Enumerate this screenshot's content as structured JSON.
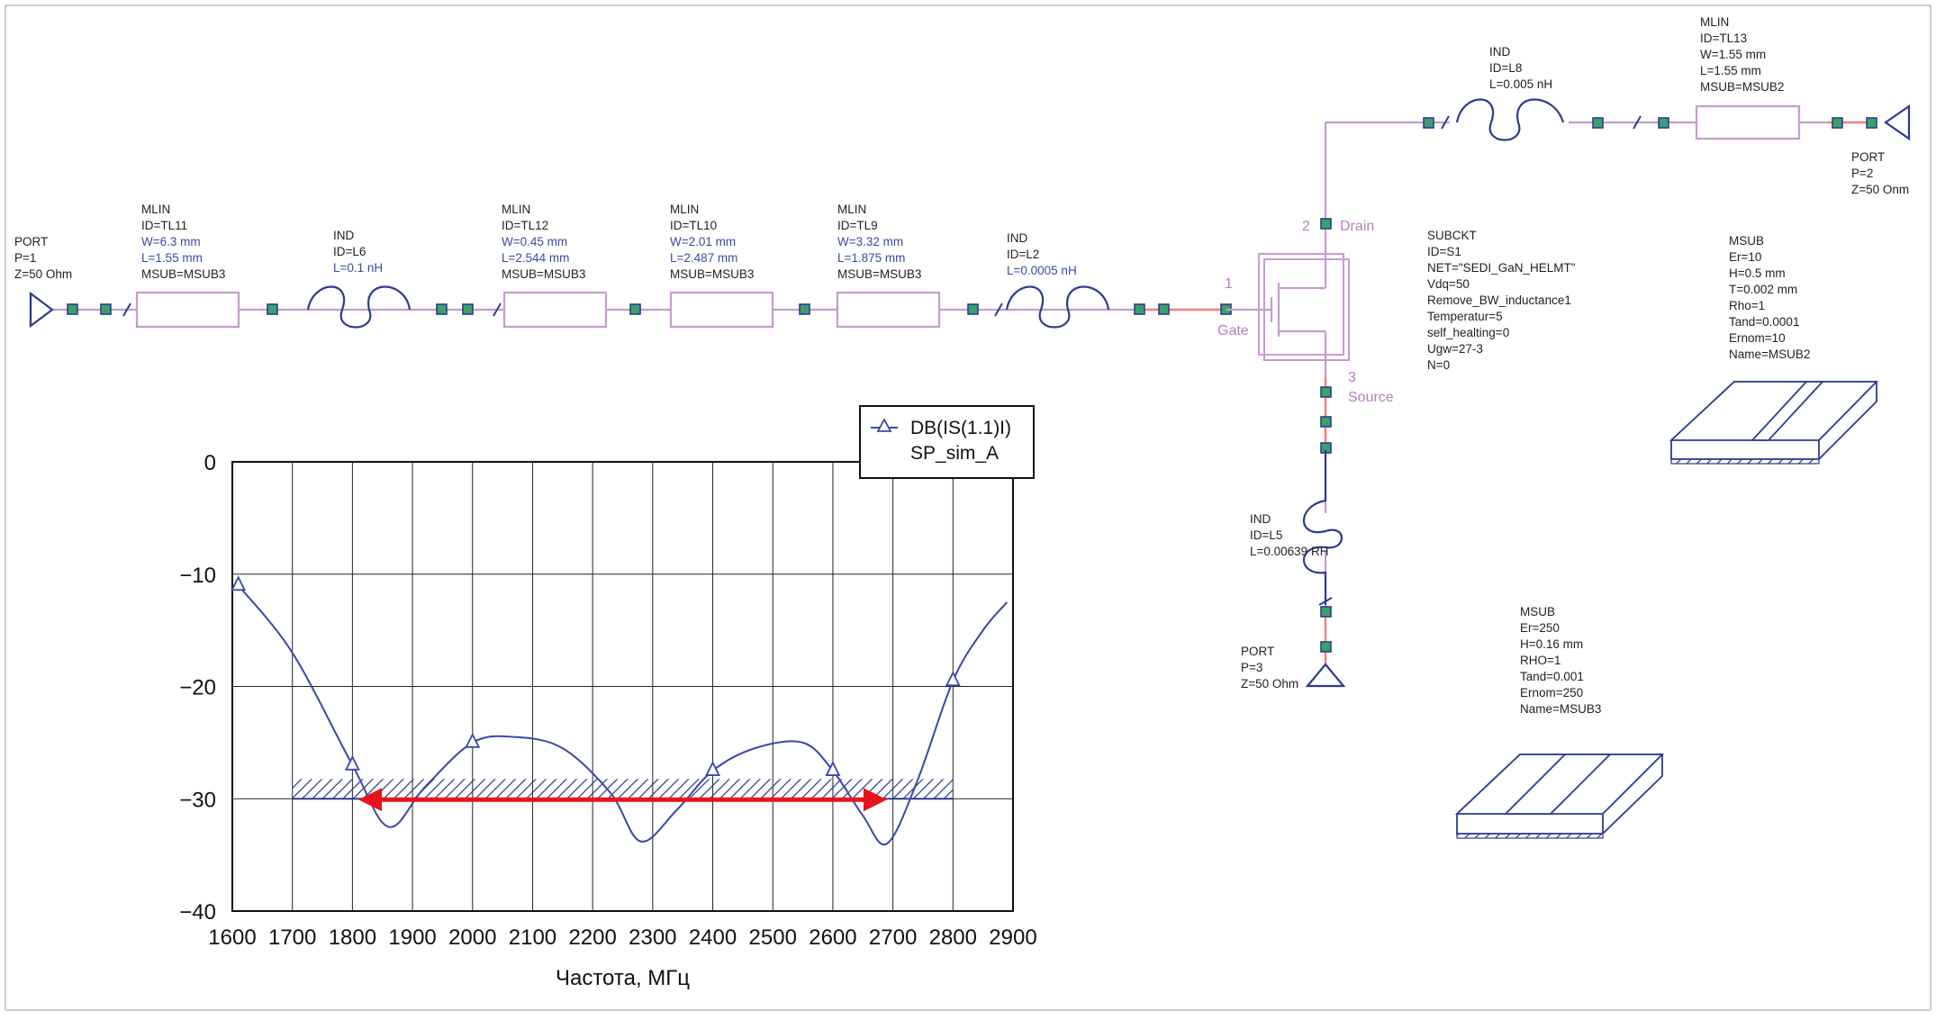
{
  "schematic": {
    "port1": [
      "PORT",
      "P=1",
      "Z=50 Ohm"
    ],
    "tl11": {
      "lines": [
        "MLIN",
        "ID=TL11"
      ],
      "params": [
        "W=6.3 mm",
        "L=1.55 mm"
      ],
      "sub": "MSUB=MSUB3"
    },
    "l6": {
      "lines": [
        "IND",
        "ID=L6"
      ],
      "params": [
        "L=0.1 nH"
      ]
    },
    "tl12": {
      "lines": [
        "MLIN",
        "ID=TL12"
      ],
      "params": [
        "W=0.45 mm",
        "L=2.544 mm"
      ],
      "sub": "MSUB=MSUB3"
    },
    "tl10": {
      "lines": [
        "MLIN",
        "ID=TL10"
      ],
      "params": [
        "W=2.01 mm",
        "L=2.487 mm"
      ],
      "sub": "MSUB=MSUB3"
    },
    "tl9": {
      "lines": [
        "MLIN",
        "ID=TL9"
      ],
      "params": [
        "W=3.32 mm",
        "L=1.875 mm"
      ],
      "sub": "MSUB=MSUB3"
    },
    "l2": {
      "lines": [
        "IND",
        "ID=L2"
      ],
      "params": [
        "L=0.0005 nH"
      ]
    },
    "transistor": {
      "pin1": "1",
      "gate": "Gate",
      "pin2": "2",
      "drain": "Drain",
      "pin3": "3",
      "source": "Source"
    },
    "subckt": [
      "SUBCKT",
      "ID=S1",
      "NET=\"SEDI_GaN_HELMT\"",
      "Vdq=50",
      "Remove_BW_inductance1",
      "Temperatur=5",
      "self_healting=0",
      "Ugw=27-3",
      "N=0"
    ],
    "l8": [
      "IND",
      "ID=L8",
      "L=0.005 nH"
    ],
    "tl13": [
      "MLIN",
      "ID=TL13",
      "W=1.55 mm",
      "L=1.55 mm",
      "MSUB=MSUB2"
    ],
    "port2": [
      "PORT",
      "P=2",
      "Z=50 Onm"
    ],
    "msub2": [
      "MSUB",
      "Er=10",
      "H=0.5 mm",
      "T=0.002 mm",
      "Rho=1",
      "Tand=0.0001",
      "Ernom=10",
      "Name=MSUB2"
    ],
    "l5": [
      "IND",
      "ID=L5",
      "L=0.00639 RH"
    ],
    "port3": [
      "PORT",
      "P=3",
      "Z=50 Ohm"
    ],
    "msub3": [
      "MSUB",
      "Er=250",
      "H=0.16 mm",
      "RHO=1",
      "Tand=0.001",
      "Ernom=250",
      "Name=MSUB3"
    ]
  },
  "chart_data": {
    "type": "line",
    "xlabel": "Частота, МГц",
    "ylabel": "",
    "xlim": [
      1600,
      2900
    ],
    "ylim": [
      -40,
      0
    ],
    "xticks": [
      1600,
      1700,
      1800,
      1900,
      2000,
      2100,
      2200,
      2300,
      2400,
      2500,
      2600,
      2700,
      2800,
      2900
    ],
    "yticks": [
      0,
      -10,
      -20,
      -30,
      -40
    ],
    "ytick_labels": [
      "0",
      "−10",
      "−20",
      "−30",
      "−40"
    ],
    "grid": true,
    "legend": {
      "position": "top-right",
      "entries": [
        "DB(IS(1.1)I)",
        "SP_sim_A"
      ]
    },
    "series": [
      {
        "name": "DB(IS(1.1)I)",
        "x": [
          1610,
          1700,
          1800,
          1860,
          1920,
          2000,
          2070,
          2150,
          2230,
          2280,
          2340,
          2400,
          2470,
          2550,
          2600,
          2650,
          2690,
          2740,
          2800,
          2850,
          2890
        ],
        "y": [
          -11,
          -17,
          -27,
          -32.5,
          -29,
          -25,
          -24.5,
          -25.5,
          -29.5,
          -33.8,
          -31,
          -27.5,
          -25.5,
          -25,
          -27.5,
          -31.5,
          -34,
          -28.5,
          -19.5,
          -15,
          -12.5
        ],
        "markers_x": [
          1610,
          1800,
          2000,
          2400,
          2600,
          2800
        ]
      }
    ],
    "spec_band": {
      "x": [
        1700,
        2800
      ],
      "y": -30
    },
    "arrow": {
      "x": [
        1810,
        2690
      ],
      "y": -30
    }
  }
}
